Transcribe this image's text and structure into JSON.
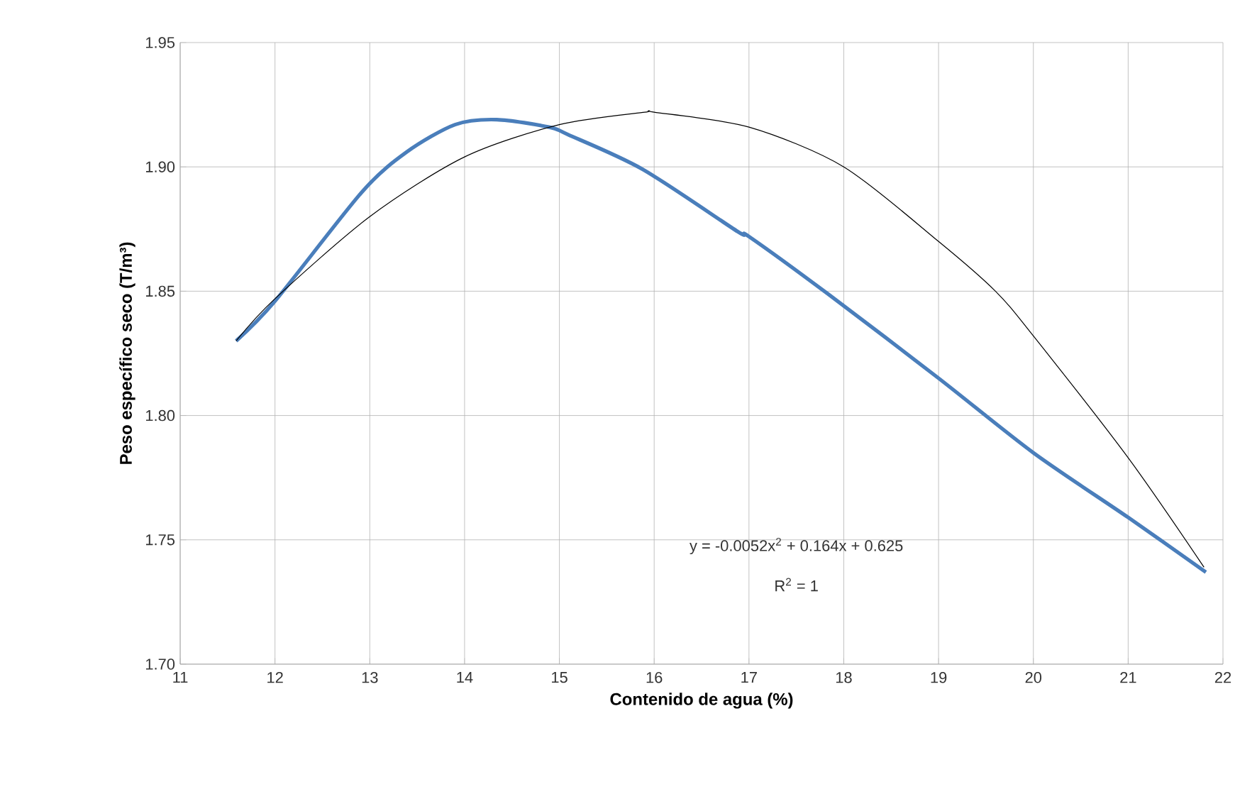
{
  "chart_data": {
    "type": "line",
    "xlabel": "Contenido de agua (%)",
    "ylabel": "Peso específico seco (T/m³)",
    "xlim": [
      11,
      22
    ],
    "xticks": [
      11,
      12,
      13,
      14,
      15,
      16,
      17,
      18,
      19,
      20,
      21,
      22
    ],
    "ylim": [
      1.7,
      1.95
    ],
    "yticks": [
      {
        "value": 1.7,
        "label": "1.70"
      },
      {
        "value": 1.75,
        "label": "1.75"
      },
      {
        "value": 1.8,
        "label": "1.80"
      },
      {
        "value": 1.85,
        "label": "1.85"
      },
      {
        "value": 1.9,
        "label": "1.90"
      },
      {
        "value": 1.95,
        "label": "1.95"
      }
    ],
    "grid": true,
    "marker": "none",
    "line_style": "solid",
    "series": [
      {
        "color": "#4a7ebb",
        "x": [
          11.59,
          12.0,
          12.92,
          13.39,
          13.9,
          14.34,
          14.89,
          15.09,
          15.88,
          16.88,
          17.0,
          17.83,
          19.0,
          20.0,
          21.0,
          21.82
        ],
        "values": [
          1.83,
          1.846,
          1.89,
          1.906,
          1.917,
          1.919,
          1.916,
          1.913,
          1.899,
          1.874,
          1.872,
          1.849,
          1.815,
          1.785,
          1.759,
          1.737
        ]
      },
      {
        "color": "#000000",
        "x": [
          11.59,
          12.0,
          13.0,
          14.0,
          15.0,
          15.9,
          16.0,
          17.0,
          18.0,
          19.0,
          19.6,
          20.0,
          21.0,
          21.8
        ],
        "values": [
          1.83,
          1.847,
          1.88,
          1.904,
          1.917,
          1.922,
          1.922,
          1.916,
          1.9,
          1.87,
          1.85,
          1.832,
          1.783,
          1.739
        ]
      }
    ],
    "annotations": [
      "y = -0.0052x$^{2}$ + 0.164x + 0.625",
      "R$^{2}$ = 1"
    ]
  }
}
